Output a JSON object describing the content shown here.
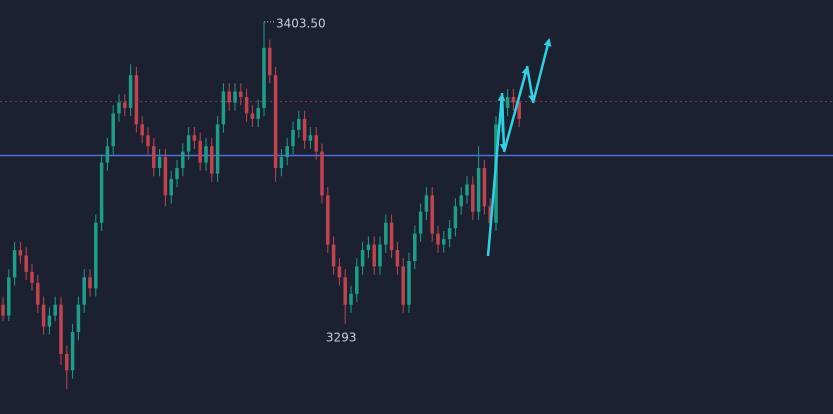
{
  "chart_data": {
    "type": "candlestick",
    "ylim": [
      3260,
      3411.5
    ],
    "up_color": "#1e9e8a",
    "down_color": "#c0444f",
    "open": [
      3300,
      3296,
      3310,
      3320,
      3318,
      3312,
      3308,
      3300,
      3292,
      3296,
      3300,
      3282,
      3276,
      3290,
      3300,
      3310,
      3306,
      3330,
      3352,
      3358,
      3370,
      3374,
      3372,
      3384,
      3366,
      3362,
      3358,
      3350,
      3354,
      3340,
      3346,
      3350,
      3356,
      3362,
      3360,
      3352,
      3358,
      3348,
      3366,
      3378,
      3374,
      3378,
      3376,
      3370,
      3368,
      3372,
      3394,
      3384,
      3350,
      3354,
      3358,
      3364,
      3368,
      3360,
      3362,
      3356,
      3340,
      3322,
      3314,
      3310,
      3300,
      3304,
      3314,
      3320,
      3322,
      3314,
      3322,
      3330,
      3320,
      3314,
      3300,
      3316,
      3326,
      3334,
      3340,
      3326,
      3322,
      3324,
      3328,
      3336,
      3340,
      3344,
      3334,
      3350,
      3336,
      3330,
      3366,
      3372,
      3376,
      3374
    ],
    "high": [
      3303,
      3313,
      3323,
      3323,
      3321,
      3315,
      3311,
      3303,
      3299,
      3303,
      3303,
      3285,
      3293,
      3303,
      3313,
      3313,
      3333,
      3355,
      3361,
      3373,
      3377,
      3377,
      3388,
      3387,
      3369,
      3365,
      3361,
      3357,
      3357,
      3349,
      3353,
      3359,
      3365,
      3365,
      3363,
      3361,
      3361,
      3369,
      3381,
      3381,
      3381,
      3381,
      3379,
      3373,
      3375,
      3403.5,
      3397,
      3387,
      3357,
      3361,
      3367,
      3371,
      3371,
      3365,
      3365,
      3359,
      3343,
      3325,
      3317,
      3313,
      3307,
      3317,
      3323,
      3325,
      3325,
      3325,
      3333,
      3333,
      3323,
      3317,
      3319,
      3329,
      3337,
      3343,
      3343,
      3329,
      3327,
      3331,
      3339,
      3343,
      3347,
      3347,
      3358,
      3353,
      3339,
      3369,
      3375,
      3379,
      3379,
      3377
    ],
    "low": [
      3294,
      3294,
      3307,
      3315,
      3309,
      3305,
      3297,
      3289,
      3289,
      3294,
      3278,
      3269,
      3273,
      3287,
      3297,
      3303,
      3303,
      3327,
      3349,
      3355,
      3367,
      3369,
      3369,
      3363,
      3359,
      3355,
      3347,
      3347,
      3336,
      3337,
      3343,
      3347,
      3353,
      3357,
      3349,
      3349,
      3345,
      3345,
      3363,
      3371,
      3371,
      3373,
      3367,
      3365,
      3365,
      3369,
      3381,
      3345,
      3347,
      3351,
      3355,
      3361,
      3357,
      3357,
      3353,
      3337,
      3319,
      3311,
      3307,
      3293,
      3297,
      3301,
      3311,
      3317,
      3311,
      3311,
      3319,
      3317,
      3311,
      3297,
      3297,
      3313,
      3323,
      3331,
      3323,
      3319,
      3319,
      3321,
      3325,
      3333,
      3337,
      3331,
      3331,
      3333,
      3327,
      3327,
      3363,
      3369,
      3371,
      3365
    ],
    "close": [
      3296,
      3310,
      3320,
      3318,
      3312,
      3308,
      3300,
      3292,
      3296,
      3300,
      3282,
      3276,
      3290,
      3300,
      3310,
      3306,
      3330,
      3352,
      3358,
      3370,
      3374,
      3372,
      3384,
      3366,
      3362,
      3358,
      3350,
      3354,
      3340,
      3346,
      3350,
      3356,
      3362,
      3360,
      3352,
      3358,
      3348,
      3366,
      3378,
      3374,
      3378,
      3376,
      3370,
      3368,
      3372,
      3394,
      3384,
      3350,
      3354,
      3358,
      3364,
      3368,
      3360,
      3362,
      3356,
      3340,
      3322,
      3314,
      3310,
      3300,
      3304,
      3314,
      3320,
      3322,
      3314,
      3322,
      3330,
      3320,
      3314,
      3300,
      3316,
      3326,
      3334,
      3340,
      3326,
      3322,
      3324,
      3328,
      3336,
      3340,
      3344,
      3334,
      3350,
      3336,
      3330,
      3366,
      3372,
      3376,
      3374,
      3368
    ],
    "hlines": [
      {
        "value": 3354.6,
        "color": "#4f6fd6",
        "style": "solid"
      },
      {
        "value": 3374.3,
        "color": "#8a3a48",
        "style": "dotted"
      }
    ],
    "high_label": {
      "value": 3403.5,
      "label": "3403.50"
    },
    "low_label": {
      "value": 3293,
      "label": "3293"
    }
  }
}
